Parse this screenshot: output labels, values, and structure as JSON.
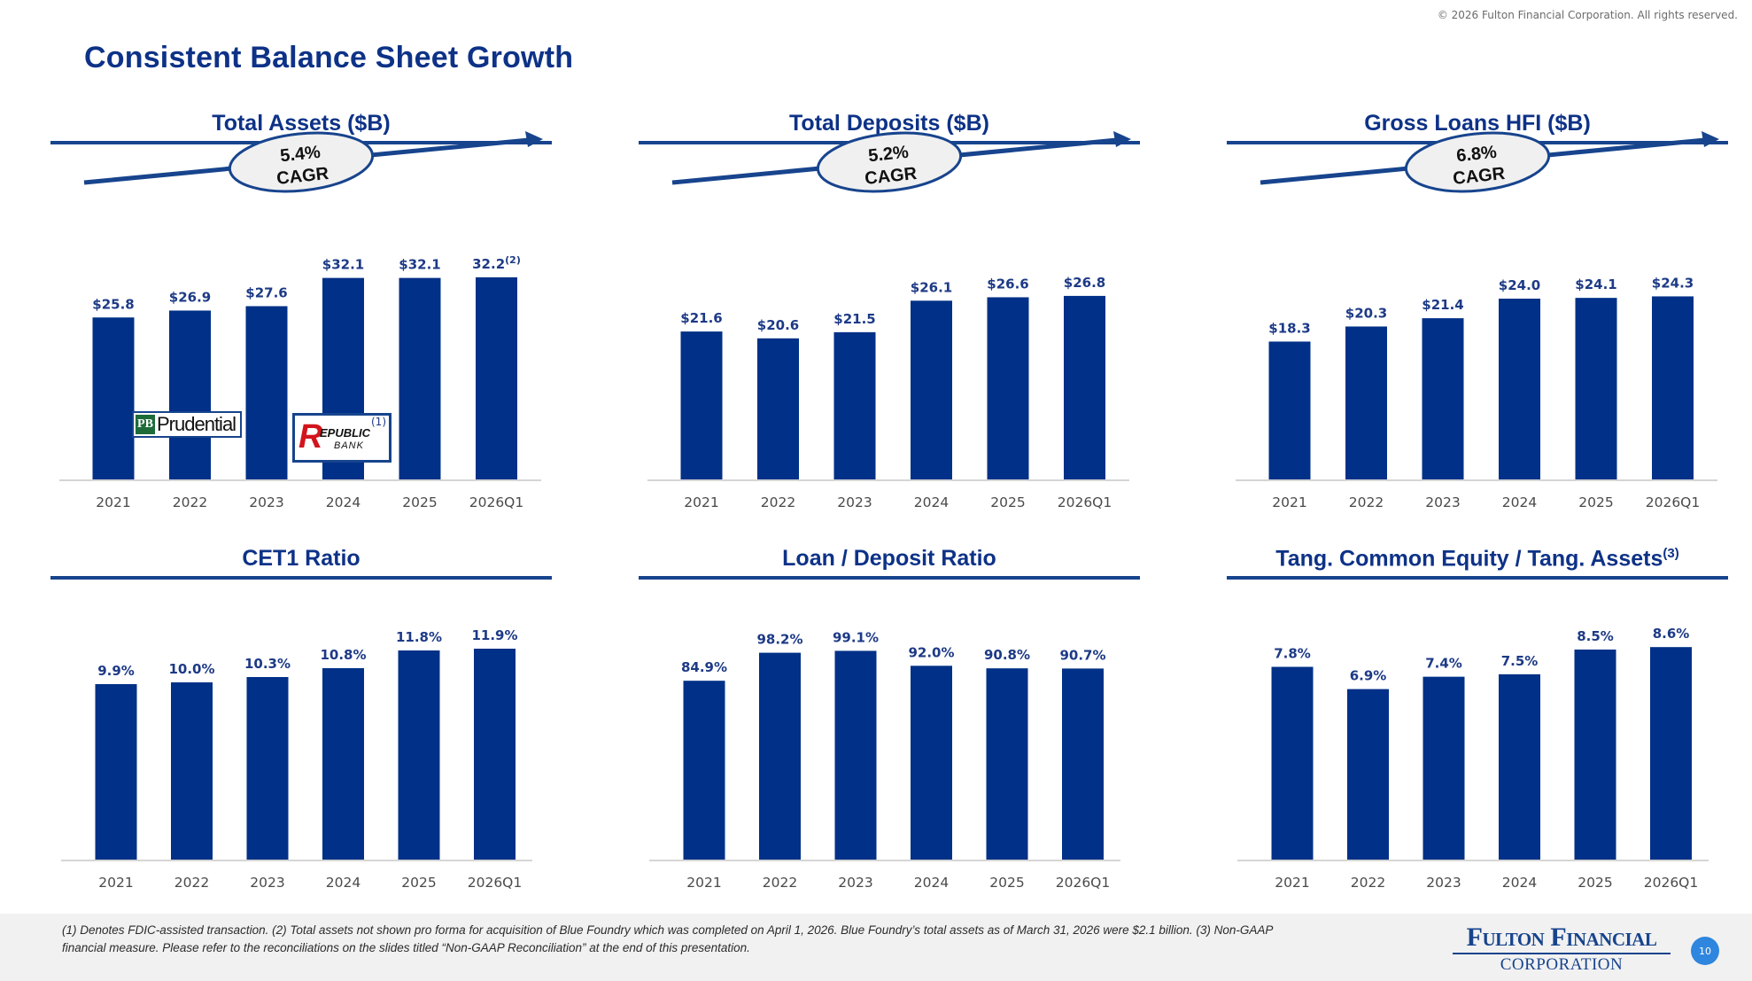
{
  "copyright": "© 2026 Fulton Financial Corporation. All rights reserved.",
  "page_title": "Consistent Balance Sheet Growth",
  "colors": {
    "bar": "#003087",
    "title": "#0d3287",
    "rule": "#17448d",
    "cagr_fill": "#f0f0f0",
    "page_badge": "#2e86de"
  },
  "logos": {
    "prudential": {
      "mark": "PB",
      "name": "Prudential"
    },
    "republic": {
      "initial": "R",
      "name_rest": "EPUBLIC",
      "sub": "BANK",
      "note": "(1)"
    }
  },
  "chart_data": [
    {
      "type": "bar",
      "title": "Total Assets ($B)",
      "title_sup": "",
      "categories": [
        "2021",
        "2022",
        "2023",
        "2024",
        "2025",
        "2026Q1"
      ],
      "values": [
        25.8,
        26.9,
        27.6,
        32.1,
        32.1,
        32.2
      ],
      "labels": [
        "$25.8",
        "$26.9",
        "$27.6",
        "$32.1",
        "$32.1",
        "32.2"
      ],
      "label_sups": [
        "",
        "",
        "",
        "",
        "",
        "(2)"
      ],
      "cagr": {
        "value": "5.4%",
        "label": "CAGR"
      },
      "xlabel": "",
      "ylabel": "",
      "ylim": [
        0,
        36
      ],
      "grid": false,
      "legend": "none"
    },
    {
      "type": "bar",
      "title": "Total Deposits ($B)",
      "title_sup": "",
      "categories": [
        "2021",
        "2022",
        "2023",
        "2024",
        "2025",
        "2026Q1"
      ],
      "values": [
        21.6,
        20.6,
        21.5,
        26.1,
        26.6,
        26.8
      ],
      "labels": [
        "$21.6",
        "$20.6",
        "$21.5",
        "$26.1",
        "$26.6",
        "$26.8"
      ],
      "label_sups": [
        "",
        "",
        "",
        "",
        "",
        ""
      ],
      "cagr": {
        "value": "5.2%",
        "label": "CAGR"
      },
      "xlabel": "",
      "ylabel": "",
      "ylim": [
        0,
        33
      ],
      "grid": false,
      "legend": "none"
    },
    {
      "type": "bar",
      "title": "Gross Loans HFI ($B)",
      "title_sup": "",
      "categories": [
        "2021",
        "2022",
        "2023",
        "2024",
        "2025",
        "2026Q1"
      ],
      "values": [
        18.3,
        20.3,
        21.4,
        24.0,
        24.1,
        24.3
      ],
      "labels": [
        "$18.3",
        "$20.3",
        "$21.4",
        "$24.0",
        "$24.1",
        "$24.3"
      ],
      "label_sups": [
        "",
        "",
        "",
        "",
        "",
        ""
      ],
      "cagr": {
        "value": "6.8%",
        "label": "CAGR"
      },
      "xlabel": "",
      "ylabel": "",
      "ylim": [
        0,
        30
      ],
      "grid": false,
      "legend": "none"
    },
    {
      "type": "bar",
      "title": "CET1 Ratio",
      "title_sup": "",
      "categories": [
        "2021",
        "2022",
        "2023",
        "2024",
        "2025",
        "2026Q1"
      ],
      "values": [
        9.9,
        10.0,
        10.3,
        10.8,
        11.8,
        11.9
      ],
      "labels": [
        "9.9%",
        "10.0%",
        "10.3%",
        "10.8%",
        "11.8%",
        "11.9%"
      ],
      "label_sups": [
        "",
        "",
        "",
        "",
        "",
        ""
      ],
      "cagr": null,
      "xlabel": "",
      "ylabel": "",
      "ylim": [
        0,
        14.5
      ],
      "grid": false,
      "legend": "none"
    },
    {
      "type": "bar",
      "title": "Loan / Deposit Ratio",
      "title_sup": "",
      "categories": [
        "2021",
        "2022",
        "2023",
        "2024",
        "2025",
        "2026Q1"
      ],
      "values": [
        84.9,
        98.2,
        99.1,
        92.0,
        90.8,
        90.7
      ],
      "labels": [
        "84.9%",
        "98.2%",
        "99.1%",
        "92.0%",
        "90.8%",
        "90.7%"
      ],
      "label_sups": [
        "",
        "",
        "",
        "",
        "",
        ""
      ],
      "cagr": null,
      "xlabel": "",
      "ylabel": "",
      "ylim": [
        0,
        122
      ],
      "grid": false,
      "legend": "none"
    },
    {
      "type": "bar",
      "title": "Tang. Common Equity / Tang. Assets",
      "title_sup": "(3)",
      "categories": [
        "2021",
        "2022",
        "2023",
        "2024",
        "2025",
        "2026Q1"
      ],
      "values": [
        7.8,
        6.9,
        7.4,
        7.5,
        8.5,
        8.6
      ],
      "labels": [
        "7.8%",
        "6.9%",
        "7.4%",
        "7.5%",
        "8.5%",
        "8.6%"
      ],
      "label_sups": [
        "",
        "",
        "",
        "",
        "",
        ""
      ],
      "cagr": null,
      "xlabel": "",
      "ylabel": "",
      "ylim": [
        0,
        10.4
      ],
      "grid": false,
      "legend": "none"
    }
  ],
  "footer": {
    "footnote": "(1) Denotes FDIC-assisted transaction. (2) Total assets not shown pro forma for acquisition of Blue Foundry which was completed on April 1, 2026. Blue Foundry’s total assets as of March 31, 2026 were $2.1 billion. (3) Non-GAAP financial measure. Please refer to the reconciliations on the slides titled “Non-GAAP Reconciliation” at the end of this presentation.",
    "logo_top": "Fulton Financial",
    "logo_bottom": "CORPORATION",
    "page_number": "10"
  }
}
